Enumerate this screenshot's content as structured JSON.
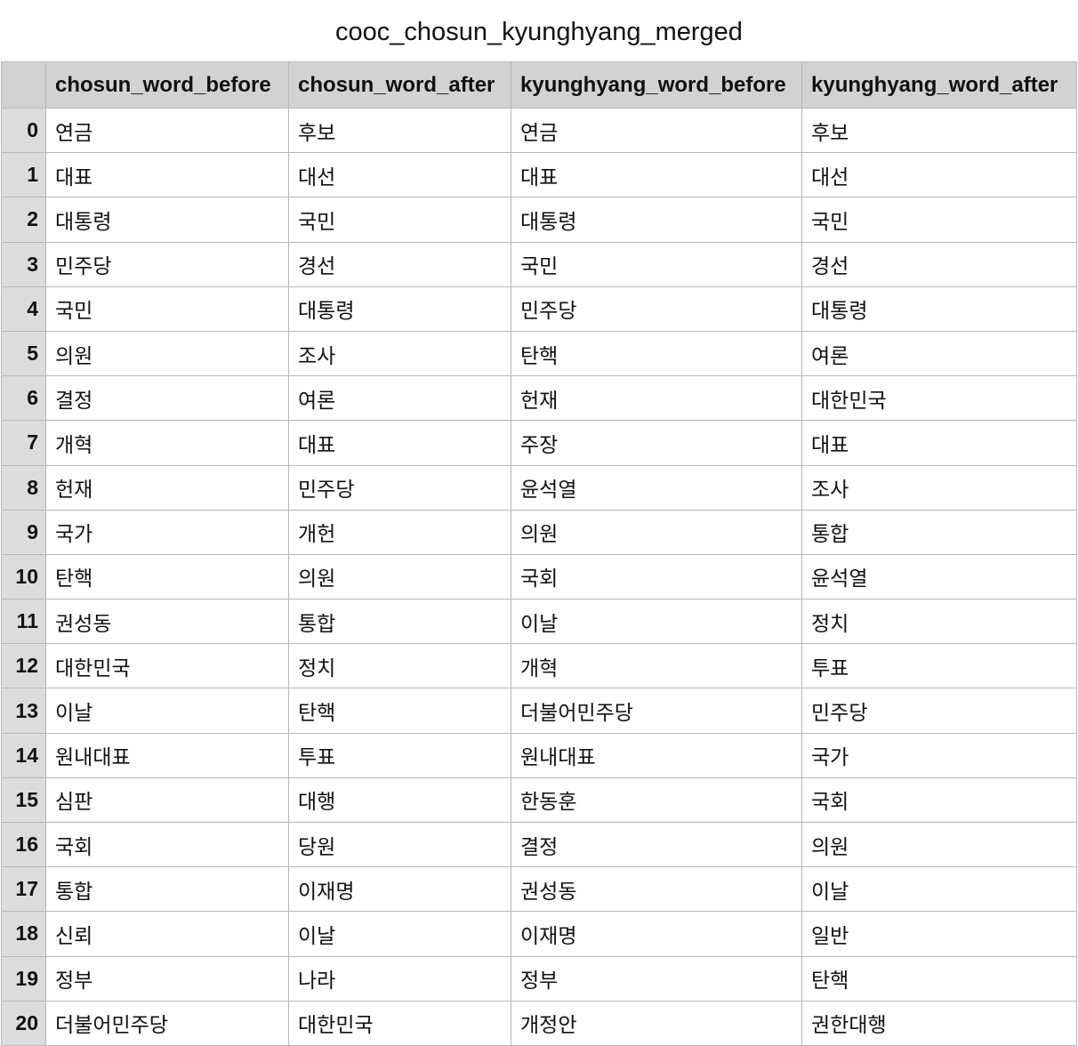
{
  "title": "cooc_chosun_kyunghyang_merged",
  "columns": [
    "chosun_word_before",
    "chosun_word_after",
    "kyunghyang_word_before",
    "kyunghyang_word_after"
  ],
  "rows": [
    {
      "index": "0",
      "cells": [
        "연금",
        "후보",
        "연금",
        "후보"
      ]
    },
    {
      "index": "1",
      "cells": [
        "대표",
        "대선",
        "대표",
        "대선"
      ]
    },
    {
      "index": "2",
      "cells": [
        "대통령",
        "국민",
        "대통령",
        "국민"
      ]
    },
    {
      "index": "3",
      "cells": [
        "민주당",
        "경선",
        "국민",
        "경선"
      ]
    },
    {
      "index": "4",
      "cells": [
        "국민",
        "대통령",
        "민주당",
        "대통령"
      ]
    },
    {
      "index": "5",
      "cells": [
        "의원",
        "조사",
        "탄핵",
        "여론"
      ]
    },
    {
      "index": "6",
      "cells": [
        "결정",
        "여론",
        "헌재",
        "대한민국"
      ]
    },
    {
      "index": "7",
      "cells": [
        "개혁",
        "대표",
        "주장",
        "대표"
      ]
    },
    {
      "index": "8",
      "cells": [
        "헌재",
        "민주당",
        "윤석열",
        "조사"
      ]
    },
    {
      "index": "9",
      "cells": [
        "국가",
        "개헌",
        "의원",
        "통합"
      ]
    },
    {
      "index": "10",
      "cells": [
        "탄핵",
        "의원",
        "국회",
        "윤석열"
      ]
    },
    {
      "index": "11",
      "cells": [
        "권성동",
        "통합",
        "이날",
        "정치"
      ]
    },
    {
      "index": "12",
      "cells": [
        "대한민국",
        "정치",
        "개혁",
        "투표"
      ]
    },
    {
      "index": "13",
      "cells": [
        "이날",
        "탄핵",
        "더불어민주당",
        "민주당"
      ]
    },
    {
      "index": "14",
      "cells": [
        "원내대표",
        "투표",
        "원내대표",
        "국가"
      ]
    },
    {
      "index": "15",
      "cells": [
        "심판",
        "대행",
        "한동훈",
        "국회"
      ]
    },
    {
      "index": "16",
      "cells": [
        "국회",
        "당원",
        "결정",
        "의원"
      ]
    },
    {
      "index": "17",
      "cells": [
        "통합",
        "이재명",
        "권성동",
        "이날"
      ]
    },
    {
      "index": "18",
      "cells": [
        "신뢰",
        "이날",
        "이재명",
        "일반"
      ]
    },
    {
      "index": "19",
      "cells": [
        "정부",
        "나라",
        "정부",
        "탄핵"
      ]
    },
    {
      "index": "20",
      "cells": [
        "더불어민주당",
        "대한민국",
        "개정안",
        "권한대행"
      ]
    }
  ]
}
